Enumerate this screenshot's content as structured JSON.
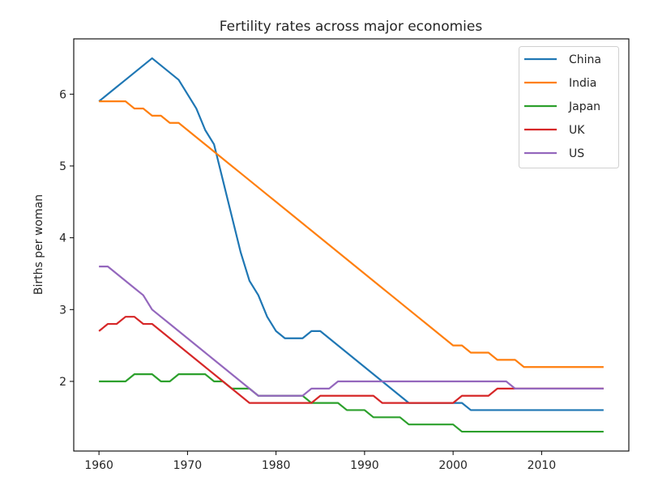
{
  "chart_data": {
    "type": "line",
    "title": "Fertility rates across major economies",
    "xlabel": "",
    "ylabel": "Births per woman",
    "xlim": [
      1957.15,
      2019.85
    ],
    "ylim": [
      1.03,
      6.77
    ],
    "xticks": [
      1960,
      1970,
      1980,
      1990,
      2000,
      2010
    ],
    "yticks": [
      2,
      3,
      4,
      5,
      6
    ],
    "grid": false,
    "legend_position": "top-right",
    "x": [
      1960,
      1961,
      1962,
      1963,
      1964,
      1965,
      1966,
      1967,
      1968,
      1969,
      1970,
      1971,
      1972,
      1973,
      1974,
      1975,
      1976,
      1977,
      1978,
      1979,
      1980,
      1981,
      1982,
      1983,
      1984,
      1985,
      1986,
      1987,
      1988,
      1989,
      1990,
      1991,
      1992,
      1993,
      1994,
      1995,
      1996,
      1997,
      1998,
      1999,
      2000,
      2001,
      2002,
      2003,
      2004,
      2005,
      2006,
      2007,
      2008,
      2009,
      2010,
      2011,
      2012,
      2013,
      2014,
      2015,
      2016,
      2017
    ],
    "series": [
      {
        "name": "China",
        "color": "#1f77b4",
        "values": [
          5.9,
          6.0,
          6.1,
          6.2,
          6.3,
          6.4,
          6.5,
          6.4,
          6.3,
          6.2,
          6.0,
          5.8,
          5.5,
          5.3,
          4.8,
          4.3,
          3.8,
          3.4,
          3.2,
          2.9,
          2.7,
          2.6,
          2.6,
          2.6,
          2.7,
          2.7,
          2.6,
          2.5,
          2.4,
          2.3,
          2.2,
          2.1,
          2.0,
          1.9,
          1.8,
          1.7,
          1.7,
          1.7,
          1.7,
          1.7,
          1.7,
          1.7,
          1.6,
          1.6,
          1.6,
          1.6,
          1.6,
          1.6,
          1.6,
          1.6,
          1.6,
          1.6,
          1.6,
          1.6,
          1.6,
          1.6,
          1.6,
          1.6
        ]
      },
      {
        "name": "India",
        "color": "#ff7f0e",
        "values": [
          5.9,
          5.9,
          5.9,
          5.9,
          5.8,
          5.8,
          5.7,
          5.7,
          5.6,
          5.6,
          5.5,
          5.4,
          5.3,
          5.2,
          5.1,
          5.0,
          4.9,
          4.8,
          4.7,
          4.6,
          4.5,
          4.4,
          4.3,
          4.2,
          4.1,
          4.0,
          3.9,
          3.8,
          3.7,
          3.6,
          3.5,
          3.4,
          3.3,
          3.2,
          3.1,
          3.0,
          2.9,
          2.8,
          2.7,
          2.6,
          2.5,
          2.5,
          2.4,
          2.4,
          2.4,
          2.3,
          2.3,
          2.3,
          2.2,
          2.2,
          2.2,
          2.2,
          2.2,
          2.2,
          2.2,
          2.2,
          2.2,
          2.2
        ]
      },
      {
        "name": "Japan",
        "color": "#2ca02c",
        "values": [
          2.0,
          2.0,
          2.0,
          2.0,
          2.1,
          2.1,
          2.1,
          2.0,
          2.0,
          2.1,
          2.1,
          2.1,
          2.1,
          2.0,
          2.0,
          1.9,
          1.9,
          1.9,
          1.8,
          1.8,
          1.8,
          1.8,
          1.8,
          1.8,
          1.7,
          1.7,
          1.7,
          1.7,
          1.6,
          1.6,
          1.6,
          1.5,
          1.5,
          1.5,
          1.5,
          1.4,
          1.4,
          1.4,
          1.4,
          1.4,
          1.4,
          1.3,
          1.3,
          1.3,
          1.3,
          1.3,
          1.3,
          1.3,
          1.3,
          1.3,
          1.3,
          1.3,
          1.3,
          1.3,
          1.3,
          1.3,
          1.3,
          1.3
        ]
      },
      {
        "name": "UK",
        "color": "#d62728",
        "values": [
          2.7,
          2.8,
          2.8,
          2.9,
          2.9,
          2.8,
          2.8,
          2.7,
          2.6,
          2.5,
          2.4,
          2.3,
          2.2,
          2.1,
          2.0,
          1.9,
          1.8,
          1.7,
          1.7,
          1.7,
          1.7,
          1.7,
          1.7,
          1.7,
          1.7,
          1.8,
          1.8,
          1.8,
          1.8,
          1.8,
          1.8,
          1.8,
          1.7,
          1.7,
          1.7,
          1.7,
          1.7,
          1.7,
          1.7,
          1.7,
          1.7,
          1.8,
          1.8,
          1.8,
          1.8,
          1.9,
          1.9,
          1.9,
          1.9,
          1.9,
          1.9,
          1.9,
          1.9,
          1.9,
          1.9,
          1.9,
          1.9,
          1.9
        ]
      },
      {
        "name": "US",
        "color": "#9467bd",
        "values": [
          3.6,
          3.6,
          3.5,
          3.4,
          3.3,
          3.2,
          3.0,
          2.9,
          2.8,
          2.7,
          2.6,
          2.5,
          2.4,
          2.3,
          2.2,
          2.1,
          2.0,
          1.9,
          1.8,
          1.8,
          1.8,
          1.8,
          1.8,
          1.8,
          1.9,
          1.9,
          1.9,
          2.0,
          2.0,
          2.0,
          2.0,
          2.0,
          2.0,
          2.0,
          2.0,
          2.0,
          2.0,
          2.0,
          2.0,
          2.0,
          2.0,
          2.0,
          2.0,
          2.0,
          2.0,
          2.0,
          2.0,
          1.9,
          1.9,
          1.9,
          1.9,
          1.9,
          1.9,
          1.9,
          1.9,
          1.9,
          1.9,
          1.9
        ]
      }
    ]
  }
}
